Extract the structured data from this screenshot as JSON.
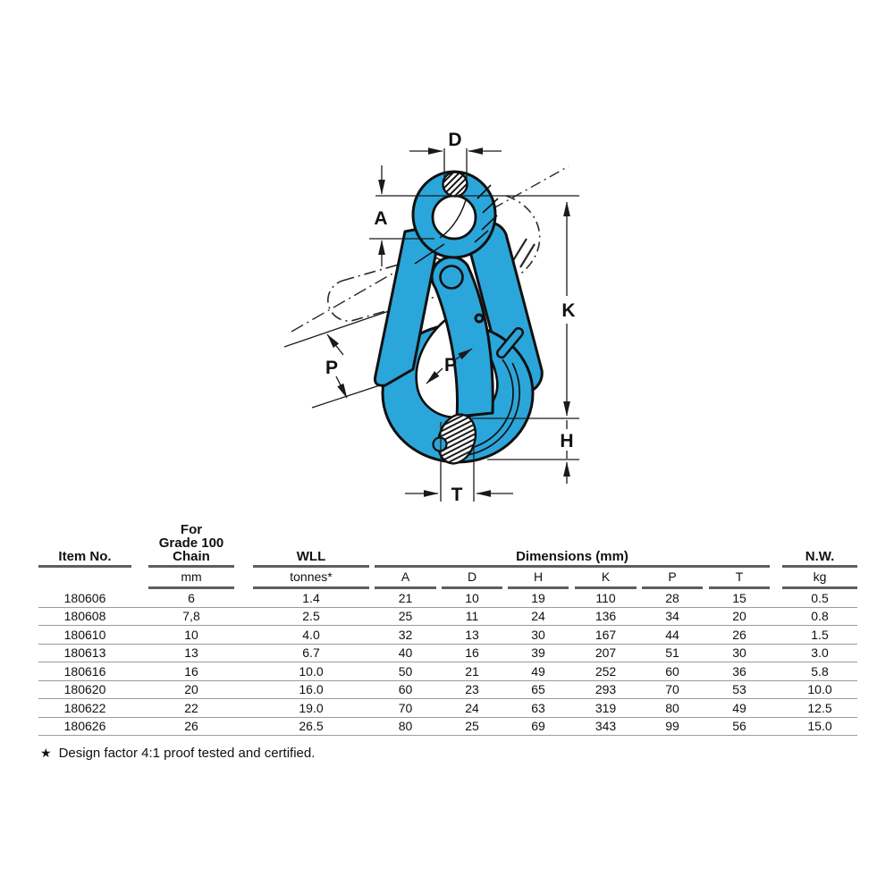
{
  "diagram": {
    "name": "eye self-locking hook technical drawing",
    "labels": {
      "d": "D",
      "a": "A",
      "k": "K",
      "h": "H",
      "t": "T",
      "p_left": "P",
      "p_right": "P"
    },
    "colors": {
      "hook_fill": "#2BA6DA",
      "outline": "#101010",
      "dimension_line": "#1a1a1a"
    }
  },
  "table": {
    "header": {
      "item": "Item No.",
      "chain_l1": "For",
      "chain_l2": "Grade 100",
      "chain_l3": "Chain",
      "wll": "WLL",
      "dimensions": "Dimensions (mm)",
      "nw": "N.W.",
      "unit_chain": "mm",
      "unit_wll": "tonnes*",
      "dim_cols": [
        "A",
        "D",
        "H",
        "K",
        "P",
        "T"
      ],
      "unit_nw": "kg"
    },
    "rows": [
      [
        "180606",
        "6",
        "1.4",
        "21",
        "10",
        "19",
        "110",
        "28",
        "15",
        "0.5"
      ],
      [
        "180608",
        "7,8",
        "2.5",
        "25",
        "11",
        "24",
        "136",
        "34",
        "20",
        "0.8"
      ],
      [
        "180610",
        "10",
        "4.0",
        "32",
        "13",
        "30",
        "167",
        "44",
        "26",
        "1.5"
      ],
      [
        "180613",
        "13",
        "6.7",
        "40",
        "16",
        "39",
        "207",
        "51",
        "30",
        "3.0"
      ],
      [
        "180616",
        "16",
        "10.0",
        "50",
        "21",
        "49",
        "252",
        "60",
        "36",
        "5.8"
      ],
      [
        "180620",
        "20",
        "16.0",
        "60",
        "23",
        "65",
        "293",
        "70",
        "53",
        "10.0"
      ],
      [
        "180622",
        "22",
        "19.0",
        "70",
        "24",
        "63",
        "319",
        "80",
        "49",
        "12.5"
      ],
      [
        "180626",
        "26",
        "26.5",
        "80",
        "25",
        "69",
        "343",
        "99",
        "56",
        "15.0"
      ]
    ]
  },
  "footnote": {
    "marker": "★",
    "text": "Design factor 4:1 proof tested and certified."
  }
}
